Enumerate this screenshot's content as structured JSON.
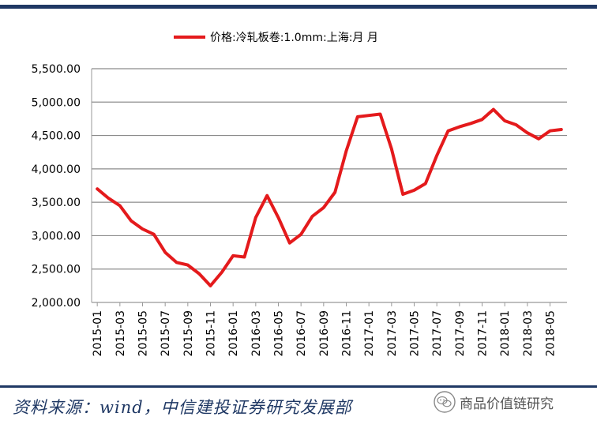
{
  "chart_data": {
    "type": "line",
    "legend": "价格:冷轧板卷:1.0mm:上海:月 月",
    "series": [
      {
        "name": "价格:冷轧板卷:1.0mm:上海:月 月",
        "color": "#e41a1c",
        "values": [
          3700,
          3560,
          3450,
          3220,
          3100,
          3020,
          2750,
          2600,
          2560,
          2430,
          2250,
          2450,
          2700,
          2680,
          3270,
          3600,
          3270,
          2890,
          3020,
          3290,
          3420,
          3650,
          4270,
          4780,
          4800,
          4820,
          4300,
          3620,
          3680,
          3780,
          4200,
          4570,
          4630,
          4680,
          4740,
          4890,
          4720,
          4660,
          4540,
          4450,
          4570,
          4590
        ]
      }
    ],
    "x": [
      "2015-01",
      "2015-02",
      "2015-03",
      "2015-04",
      "2015-05",
      "2015-06",
      "2015-07",
      "2015-08",
      "2015-09",
      "2015-10",
      "2015-11",
      "2015-12",
      "2016-01",
      "2016-02",
      "2016-03",
      "2016-04",
      "2016-05",
      "2016-06",
      "2016-07",
      "2016-08",
      "2016-09",
      "2016-10",
      "2016-11",
      "2016-12",
      "2017-01",
      "2017-02",
      "2017-03",
      "2017-04",
      "2017-05",
      "2017-06",
      "2017-07",
      "2017-08",
      "2017-09",
      "2017-10",
      "2017-11",
      "2017-12",
      "2018-01",
      "2018-02",
      "2018-03",
      "2018-04",
      "2018-05",
      "2018-06"
    ],
    "xtick_labels": [
      "2015-01",
      "2015-03",
      "2015-05",
      "2015-07",
      "2015-09",
      "2015-11",
      "2016-01",
      "2016-03",
      "2016-05",
      "2016-07",
      "2016-09",
      "2016-11",
      "2017-01",
      "2017-03",
      "2017-05",
      "2017-07",
      "2017-09",
      "2017-11",
      "2018-01",
      "2018-03",
      "2018-05"
    ],
    "yticks": [
      "2,000.00",
      "2,500.00",
      "3,000.00",
      "3,500.00",
      "4,000.00",
      "4,500.00",
      "5,000.00",
      "5,500.00"
    ],
    "ylim": [
      2000,
      5500
    ],
    "grid": "horizontal",
    "legend_position": "top"
  },
  "footer": {
    "source": "资料来源：wind，中信建投证券研究发展部",
    "watermark": "商品价值链研究",
    "watermark_icon": "wechat-icon"
  }
}
